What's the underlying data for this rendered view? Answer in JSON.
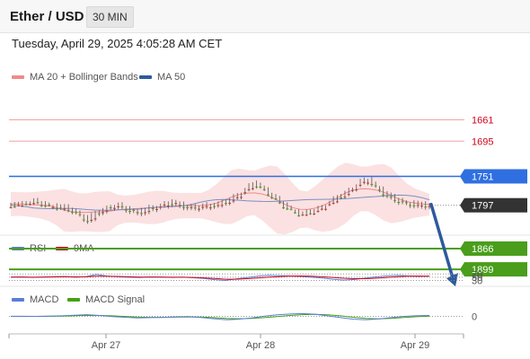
{
  "header": {
    "title": "Ether / USD",
    "timeframe": "30 MIN",
    "timestamp": "Tuesday, April 29, 2025 4:05:28 AM CET"
  },
  "legends": {
    "main": [
      {
        "label": "MA 20 + Bollinger Bands",
        "color": "#f08a8a"
      },
      {
        "label": "MA 50",
        "color": "#2d5a9e"
      }
    ],
    "rsi": [
      {
        "label": "RSI",
        "color": "#5b7fd6"
      },
      {
        "label": "9MA",
        "color": "#d0021b"
      }
    ],
    "macd": [
      {
        "label": "MACD",
        "color": "#5b7fd6"
      },
      {
        "label": "MACD Signal",
        "color": "#46a112"
      }
    ]
  },
  "chart_data": {
    "type": "candlestick",
    "x_labels": [
      "Apr 27",
      "Apr 28",
      "Apr 29"
    ],
    "price_levels": [
      {
        "value": 1899,
        "label": "1899",
        "kind": "resistance",
        "color": "#4a9e1b"
      },
      {
        "value": 1866,
        "label": "1866",
        "kind": "resistance",
        "color": "#4a9e1b"
      },
      {
        "value": 1797,
        "label": "1797",
        "kind": "current",
        "color": "#333333"
      },
      {
        "value": 1751,
        "label": "1751",
        "kind": "support",
        "color": "#2f6fe0"
      },
      {
        "value": 1695,
        "label": "1695",
        "kind": "support",
        "color": "#d0021b"
      },
      {
        "value": 1661,
        "label": "1661",
        "kind": "support",
        "color": "#d0021b"
      }
    ],
    "price_path": [
      1798,
      1796,
      1794,
      1792,
      1795,
      1798,
      1800,
      1802,
      1805,
      1812,
      1822,
      1812,
      1805,
      1800,
      1798,
      1802,
      1806,
      1808,
      1804,
      1800,
      1796,
      1793,
      1796,
      1799,
      1801,
      1800,
      1798,
      1796,
      1793,
      1788,
      1780,
      1770,
      1763,
      1770,
      1780,
      1790,
      1800,
      1806,
      1812,
      1810,
      1806,
      1800,
      1792,
      1785,
      1778,
      1769,
      1760,
      1758,
      1768,
      1778,
      1786,
      1790,
      1794,
      1796,
      1797,
      1797
    ],
    "rsi": {
      "levels": [
        70,
        50,
        30
      ],
      "rsi_values": [
        50,
        52,
        49,
        51,
        53,
        55,
        50,
        54,
        68,
        56,
        53,
        50,
        48,
        52,
        51,
        49,
        50,
        47,
        42,
        35,
        30,
        40,
        48,
        56,
        62,
        60,
        58,
        55,
        50,
        45,
        38,
        32,
        36,
        44,
        52,
        58,
        62,
        58,
        55,
        56
      ],
      "ma_values": [
        51,
        51,
        50,
        51,
        52,
        53,
        52,
        53,
        56,
        56,
        55,
        53,
        51,
        51,
        51,
        50,
        50,
        49,
        46,
        42,
        38,
        38,
        41,
        45,
        50,
        54,
        57,
        58,
        56,
        53,
        49,
        44,
        41,
        41,
        44,
        48,
        53,
        56,
        57,
        56
      ]
    },
    "macd": {
      "zero_label": "0",
      "macd_values": [
        0.3,
        0.2,
        -0.1,
        0.4,
        1.2,
        2.5,
        4.0,
        2.0,
        -0.5,
        -2.0,
        -3.5,
        -3.0,
        -2.2,
        -1.0,
        -0.5,
        -2.5,
        -5.5,
        -8.0,
        -6.5,
        -3.5,
        0.5,
        3.5,
        5.5,
        6.5,
        5.0,
        1.0,
        -3.0,
        -6.5,
        -8.0,
        -6.0,
        -3.0,
        0.0,
        1.5,
        2.0
      ],
      "signal_values": [
        0.1,
        0.1,
        0.0,
        0.2,
        0.6,
        1.3,
        2.2,
        2.0,
        1.2,
        -0.2,
        -1.6,
        -2.3,
        -2.3,
        -1.8,
        -1.3,
        -1.6,
        -3.0,
        -4.8,
        -5.5,
        -4.8,
        -3.0,
        -0.5,
        2.0,
        4.0,
        4.8,
        3.8,
        1.2,
        -2.0,
        -4.8,
        -5.8,
        -4.8,
        -2.8,
        -0.8,
        0.5
      ]
    }
  }
}
